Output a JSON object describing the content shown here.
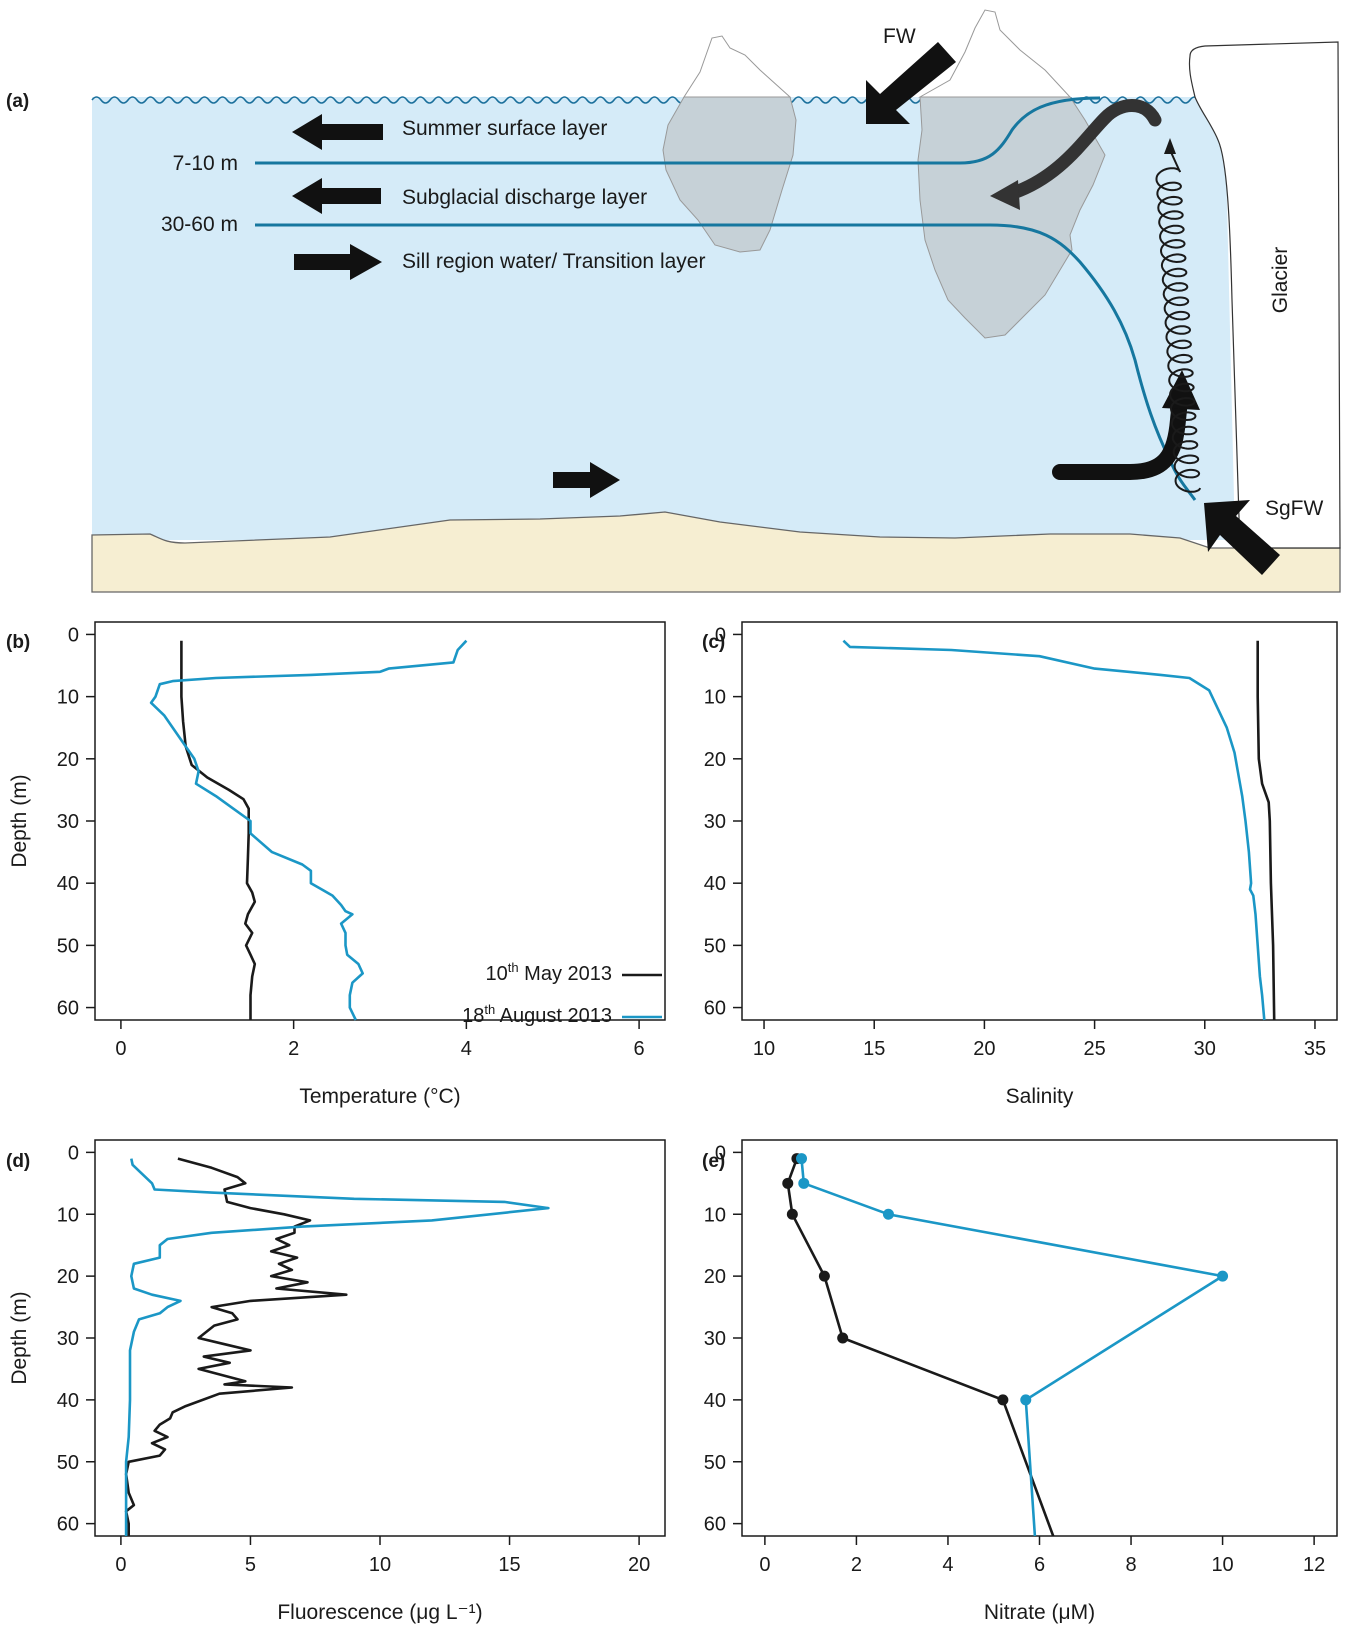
{
  "colors": {
    "may": "#1a1a1a",
    "august": "#1b97c6",
    "water": "#d5ebf8",
    "wave": "#1a6f9b",
    "sediment": "#f6eed2",
    "ice": "#c9d2d8",
    "schematic_line": "#16779f"
  },
  "schematic": {
    "panel_label": "(a)",
    "labels": {
      "fw": "FW",
      "sgfw": "SgFW",
      "glacier": "Glacier",
      "depth_1": "7-10 m",
      "depth_2": "30-60 m",
      "layer_1": "Summer surface layer",
      "layer_2": "Subglacial discharge layer",
      "layer_3": "Sill region water/ Transition layer"
    },
    "arrows": {
      "layer_1": "left-arrow-icon",
      "layer_2": "left-arrow-icon",
      "layer_3": "right-arrow-icon",
      "bottom": "right-arrow-icon",
      "fw": "inflow-arrow-icon",
      "sgfw": "inflow-arrow-icon"
    }
  },
  "legend": {
    "may": "10th May 2013",
    "august": "18th August 2013",
    "may_parts": [
      "10",
      "th",
      " May 2013"
    ],
    "august_parts": [
      "18",
      "th",
      " August 2013"
    ]
  },
  "panels": {
    "b": "(b)",
    "c": "(c)",
    "d": "(d)",
    "e": "(e)"
  },
  "chart_data": [
    {
      "panel": "(b)",
      "type": "line",
      "xlabel": "Temperature (°C)",
      "ylabel": "Depth (m)",
      "xlim": [
        -0.3,
        6.3
      ],
      "ylim": [
        62,
        -2
      ],
      "y_inverted": true,
      "xticks": [
        0,
        2,
        4,
        6
      ],
      "yticks": [
        0,
        10,
        20,
        30,
        40,
        50,
        60
      ],
      "legend": "inside-bottom-right",
      "series": [
        {
          "name": "10th May 2013",
          "color": "#1a1a1a",
          "points": [
            [
              0.7,
              1
            ],
            [
              0.7,
              5
            ],
            [
              0.7,
              10
            ],
            [
              0.72,
              14
            ],
            [
              0.75,
              18
            ],
            [
              0.82,
              21
            ],
            [
              1.0,
              23
            ],
            [
              1.25,
              25
            ],
            [
              1.42,
              26.5
            ],
            [
              1.48,
              28
            ],
            [
              1.48,
              32
            ],
            [
              1.47,
              36
            ],
            [
              1.46,
              40
            ],
            [
              1.52,
              41.5
            ],
            [
              1.55,
              43
            ],
            [
              1.47,
              45
            ],
            [
              1.44,
              46.5
            ],
            [
              1.52,
              48
            ],
            [
              1.45,
              50
            ],
            [
              1.5,
              51.5
            ],
            [
              1.55,
              53
            ],
            [
              1.52,
              55
            ],
            [
              1.5,
              58
            ],
            [
              1.5,
              62
            ]
          ]
        },
        {
          "name": "18th August 2013",
          "color": "#1b97c6",
          "points": [
            [
              4.0,
              1
            ],
            [
              3.9,
              2.5
            ],
            [
              3.85,
              4.5
            ],
            [
              3.1,
              5.5
            ],
            [
              3.0,
              6
            ],
            [
              2.2,
              6.5
            ],
            [
              1.1,
              7
            ],
            [
              0.6,
              7.5
            ],
            [
              0.45,
              8
            ],
            [
              0.4,
              10
            ],
            [
              0.35,
              11
            ],
            [
              0.5,
              13
            ],
            [
              0.7,
              17
            ],
            [
              0.85,
              20
            ],
            [
              0.9,
              22
            ],
            [
              0.87,
              24
            ],
            [
              1.1,
              26
            ],
            [
              1.3,
              28
            ],
            [
              1.5,
              30
            ],
            [
              1.5,
              32
            ],
            [
              1.75,
              35
            ],
            [
              2.1,
              37
            ],
            [
              2.2,
              38
            ],
            [
              2.2,
              40
            ],
            [
              2.45,
              42
            ],
            [
              2.55,
              43.5
            ],
            [
              2.6,
              44.5
            ],
            [
              2.68,
              45
            ],
            [
              2.55,
              46.5
            ],
            [
              2.6,
              48
            ],
            [
              2.6,
              50
            ],
            [
              2.62,
              51.5
            ],
            [
              2.75,
              53
            ],
            [
              2.8,
              54.5
            ],
            [
              2.68,
              56
            ],
            [
              2.65,
              58
            ],
            [
              2.65,
              60
            ],
            [
              2.72,
              62
            ]
          ]
        }
      ]
    },
    {
      "panel": "(c)",
      "type": "line",
      "xlabel": "Salinity",
      "ylabel": "",
      "xlim": [
        9,
        36
      ],
      "ylim": [
        62,
        -2
      ],
      "y_inverted": true,
      "xticks": [
        10,
        15,
        20,
        25,
        30,
        35
      ],
      "yticks": [
        0,
        10,
        20,
        30,
        40,
        50,
        60
      ],
      "series": [
        {
          "name": "10th May 2013",
          "color": "#1a1a1a",
          "points": [
            [
              32.4,
              1
            ],
            [
              32.4,
              10
            ],
            [
              32.45,
              20
            ],
            [
              32.6,
              24
            ],
            [
              32.9,
              27
            ],
            [
              32.95,
              30
            ],
            [
              33.0,
              40
            ],
            [
              33.1,
              50
            ],
            [
              33.15,
              62
            ]
          ]
        },
        {
          "name": "18th August 2013",
          "color": "#1b97c6",
          "points": [
            [
              13.6,
              1
            ],
            [
              13.9,
              2
            ],
            [
              18.5,
              2.5
            ],
            [
              22.5,
              3.5
            ],
            [
              25.0,
              5.5
            ],
            [
              28.0,
              6.5
            ],
            [
              29.3,
              7
            ],
            [
              30.2,
              9
            ],
            [
              30.6,
              12
            ],
            [
              31.0,
              15
            ],
            [
              31.35,
              19
            ],
            [
              31.5,
              22
            ],
            [
              31.7,
              26
            ],
            [
              31.85,
              30
            ],
            [
              32.0,
              35
            ],
            [
              32.1,
              40
            ],
            [
              32.05,
              41
            ],
            [
              32.2,
              42
            ],
            [
              32.3,
              45
            ],
            [
              32.4,
              50
            ],
            [
              32.5,
              55
            ],
            [
              32.6,
              58
            ],
            [
              32.7,
              62
            ]
          ]
        }
      ]
    },
    {
      "panel": "(d)",
      "type": "line",
      "xlabel": "Fluorescence (μg L⁻¹)",
      "ylabel": "Depth (m)",
      "xlim": [
        -1,
        21
      ],
      "ylim": [
        62,
        -2
      ],
      "y_inverted": true,
      "xticks": [
        0,
        5,
        10,
        15,
        20
      ],
      "yticks": [
        0,
        10,
        20,
        30,
        40,
        50,
        60
      ],
      "series": [
        {
          "name": "10th May 2013",
          "color": "#1a1a1a",
          "points": [
            [
              2.2,
              1
            ],
            [
              3.5,
              2.5
            ],
            [
              4.5,
              4
            ],
            [
              4.8,
              5
            ],
            [
              4.0,
              6
            ],
            [
              4.1,
              8
            ],
            [
              5.0,
              9
            ],
            [
              6.3,
              10
            ],
            [
              7.3,
              11
            ],
            [
              6.7,
              12
            ],
            [
              6.7,
              13
            ],
            [
              6.0,
              14
            ],
            [
              6.5,
              15
            ],
            [
              5.8,
              16
            ],
            [
              6.8,
              17
            ],
            [
              6.1,
              18
            ],
            [
              6.6,
              19
            ],
            [
              5.8,
              20
            ],
            [
              7.2,
              21
            ],
            [
              6.0,
              22
            ],
            [
              8.7,
              23
            ],
            [
              5.0,
              24
            ],
            [
              3.5,
              25
            ],
            [
              4.3,
              26
            ],
            [
              4.5,
              27
            ],
            [
              3.6,
              28
            ],
            [
              3.0,
              30
            ],
            [
              4.0,
              31
            ],
            [
              5.0,
              32
            ],
            [
              3.2,
              33
            ],
            [
              4.2,
              34
            ],
            [
              3.0,
              35
            ],
            [
              4.8,
              37
            ],
            [
              4.0,
              37.5
            ],
            [
              6.6,
              38
            ],
            [
              3.8,
              39
            ],
            [
              2.5,
              41
            ],
            [
              2.0,
              42
            ],
            [
              1.9,
              43
            ],
            [
              1.5,
              44
            ],
            [
              1.3,
              45
            ],
            [
              1.8,
              46
            ],
            [
              1.2,
              47
            ],
            [
              1.7,
              48
            ],
            [
              1.5,
              49
            ],
            [
              0.3,
              50
            ],
            [
              0.2,
              52
            ],
            [
              0.3,
              55
            ],
            [
              0.5,
              57
            ],
            [
              0.2,
              58
            ],
            [
              0.3,
              60
            ],
            [
              0.3,
              62
            ]
          ]
        },
        {
          "name": "18th August 2013",
          "color": "#1b97c6",
          "points": [
            [
              0.4,
              1
            ],
            [
              0.45,
              2
            ],
            [
              0.7,
              3
            ],
            [
              1.2,
              5
            ],
            [
              1.3,
              6
            ],
            [
              3.5,
              6.5
            ],
            [
              9.0,
              7.5
            ],
            [
              14.8,
              8
            ],
            [
              16.5,
              9
            ],
            [
              12.0,
              11
            ],
            [
              7.0,
              12
            ],
            [
              3.5,
              13
            ],
            [
              1.8,
              14
            ],
            [
              1.5,
              15
            ],
            [
              1.5,
              17
            ],
            [
              0.5,
              18
            ],
            [
              0.4,
              20
            ],
            [
              0.5,
              22
            ],
            [
              1.2,
              23
            ],
            [
              2.3,
              24
            ],
            [
              1.8,
              25
            ],
            [
              1.5,
              26
            ],
            [
              0.7,
              27
            ],
            [
              0.5,
              29
            ],
            [
              0.35,
              32
            ],
            [
              0.35,
              40
            ],
            [
              0.3,
              46
            ],
            [
              0.2,
              50
            ],
            [
              0.2,
              55
            ],
            [
              0.2,
              62
            ]
          ]
        }
      ]
    },
    {
      "panel": "(e)",
      "type": "line",
      "xlabel": "Nitrate (μM)",
      "ylabel": "",
      "xlim": [
        -0.5,
        12.5
      ],
      "ylim": [
        62,
        -2
      ],
      "y_inverted": true,
      "xticks": [
        0,
        2,
        4,
        6,
        8,
        10,
        12
      ],
      "yticks": [
        0,
        10,
        20,
        30,
        40,
        50,
        60
      ],
      "series": [
        {
          "name": "10th May 2013",
          "color": "#1a1a1a",
          "markers": [
            [
              0.7,
              1
            ],
            [
              0.5,
              5
            ],
            [
              0.6,
              10
            ],
            [
              1.3,
              20
            ],
            [
              1.7,
              30
            ],
            [
              5.2,
              40
            ]
          ],
          "points": [
            [
              0.7,
              1
            ],
            [
              0.5,
              5
            ],
            [
              0.6,
              10
            ],
            [
              1.3,
              20
            ],
            [
              1.7,
              30
            ],
            [
              5.2,
              40
            ],
            [
              6.3,
              62
            ]
          ]
        },
        {
          "name": "18th August 2013",
          "color": "#1b97c6",
          "markers": [
            [
              0.8,
              1
            ],
            [
              0.85,
              5
            ],
            [
              2.7,
              10
            ],
            [
              10.0,
              20
            ],
            [
              5.7,
              40
            ]
          ],
          "points": [
            [
              0.8,
              1
            ],
            [
              0.85,
              5
            ],
            [
              2.7,
              10
            ],
            [
              10.0,
              20
            ],
            [
              5.7,
              40
            ],
            [
              5.9,
              62
            ]
          ]
        }
      ]
    }
  ]
}
